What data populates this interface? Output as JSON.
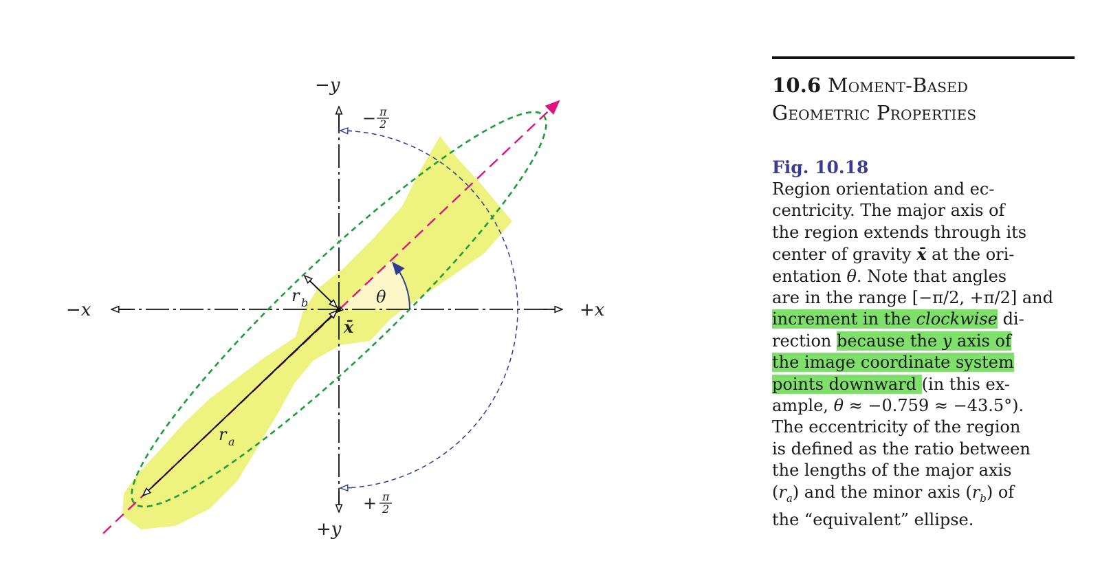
{
  "section": {
    "number": "10.6",
    "title_line1": "Moment-Based",
    "title_line2": "Geometric Properties"
  },
  "figure_label": "Fig. 10.18",
  "caption_lines": [
    {
      "parts": [
        {
          "t": "Region orientation and ec-"
        }
      ]
    },
    {
      "parts": [
        {
          "t": "centricity. The major axis of"
        }
      ]
    },
    {
      "parts": [
        {
          "t": "the region extends through its"
        }
      ]
    },
    {
      "parts": [
        {
          "t": "center of gravity "
        },
        {
          "t": "x̄",
          "s": "bi"
        },
        {
          "t": " at the ori-"
        }
      ]
    },
    {
      "parts": [
        {
          "t": "entation "
        },
        {
          "t": "θ",
          "s": "it"
        },
        {
          "t": ". Note that angles"
        }
      ]
    },
    {
      "parts": [
        {
          "t": "are in the range [−π/2, +π/2] and"
        }
      ]
    },
    {
      "parts": [
        {
          "t": "increment in the ",
          "h": true
        },
        {
          "t": "clockwise",
          "h": true,
          "s": "it"
        },
        {
          "t": " di-"
        }
      ]
    },
    {
      "parts": [
        {
          "t": "rection "
        },
        {
          "t": "because the ",
          "h": true
        },
        {
          "t": "y",
          "h": true,
          "s": "it"
        },
        {
          "t": " axis of",
          "h": true
        }
      ]
    },
    {
      "parts": [
        {
          "t": "the image coordinate system",
          "h": true
        }
      ]
    },
    {
      "parts": [
        {
          "t": "points downward ",
          "h": true
        },
        {
          "t": "(in this ex-"
        }
      ]
    },
    {
      "parts": [
        {
          "t": "ample, "
        },
        {
          "t": "θ",
          "s": "it"
        },
        {
          "t": " ≈ −0.759 ≈ −43.5°)."
        }
      ]
    },
    {
      "parts": [
        {
          "t": "The eccentricity of the region"
        }
      ]
    },
    {
      "parts": [
        {
          "t": "is defined as the ratio between"
        }
      ]
    },
    {
      "parts": [
        {
          "t": "the lengths of the major axis"
        }
      ]
    },
    {
      "parts": [
        {
          "t": "("
        },
        {
          "t": "r",
          "s": "it"
        },
        {
          "t": "a",
          "s": "sub"
        },
        {
          "t": ") and the minor axis ("
        },
        {
          "t": "r",
          "s": "it"
        },
        {
          "t": "b",
          "s": "sub"
        },
        {
          "t": ") of"
        }
      ]
    },
    {
      "parts": [
        {
          "t": "the “equivalent” ellipse."
        }
      ]
    }
  ],
  "diagram": {
    "label_minus_y": "−y",
    "label_plus_y": "+y",
    "label_minus_x": "−x",
    "label_plus_x": "+x",
    "label_minus_pi2_sign": "−",
    "label_plus_pi2_sign": "+",
    "frac_num": "π",
    "frac_den": "2",
    "label_theta": "θ",
    "label_xbar": "x̄",
    "label_ra": "r",
    "label_ra_sub": "a",
    "label_rb": "r",
    "label_rb_sub": "b",
    "colors": {
      "region": "#eef27e",
      "major_axis": "#e0127f",
      "ellipse": "#1e9c3c",
      "arc": "#2e3d91",
      "theta_arrow": "#2e3d91",
      "highlight": "#7ee06a",
      "figure_label": "#3a3d8f"
    }
  }
}
